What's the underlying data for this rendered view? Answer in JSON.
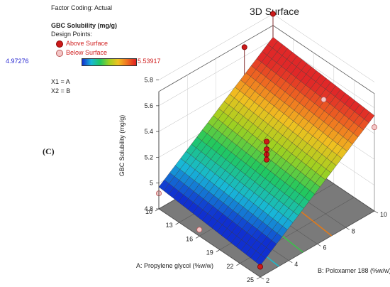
{
  "panel_label": "(C)",
  "info": {
    "factor_coding": "Factor Coding: Actual",
    "response_name": "GBC Solubility (mg/g)",
    "design_points_label": "Design Points:",
    "above_label": "Above Surface",
    "below_label": "Below Surface",
    "range_low": "4.97276",
    "range_high": "5.53917",
    "x1_def": "X1 = A",
    "x2_def": "X2 = B"
  },
  "colors": {
    "above_marker": "#cc1a1a",
    "below_marker": "#f3c7c7",
    "floor": "#7a7a7a",
    "info_blue": "#1f1fd0",
    "info_red": "#d01f1f"
  },
  "chart_data": {
    "type": "surface3d",
    "title": "3D Surface",
    "xlabel": "A: Propylene glycol (%w/w)",
    "ylabel": "B: Poloxamer 188 (%w/w)",
    "zlabel": "GBC Solubility (mg/g)",
    "x_ticks": [
      "10",
      "13",
      "16",
      "19",
      "22",
      "25"
    ],
    "y_ticks": [
      "2",
      "4",
      "6",
      "8",
      "10"
    ],
    "z_ticks": [
      "4.8",
      "5",
      "5.2",
      "5.4",
      "5.6",
      "5.8"
    ],
    "xlim": [
      10,
      25
    ],
    "ylim": [
      2,
      10
    ],
    "zlim": [
      4.8,
      5.8
    ],
    "surface": {
      "type": "plane",
      "corners": [
        {
          "a": 10,
          "b": 2,
          "z": 4.97
        },
        {
          "a": 25,
          "b": 2,
          "z": 4.89
        },
        {
          "a": 10,
          "b": 10,
          "z": 5.62
        },
        {
          "a": 25,
          "b": 10,
          "z": 5.54
        }
      ],
      "color_min": 4.97276,
      "color_max": 5.53917
    },
    "contours": [
      {
        "color": "#1fb8c7",
        "b_at_a10": 3.9,
        "b_at_a25": 3.3
      },
      {
        "color": "#3bc24a",
        "b_at_a10": 5.6,
        "b_at_a25": 5.0
      },
      {
        "color": "#e07a1a",
        "b_at_a10": 7.6,
        "b_at_a25": 7.0
      }
    ],
    "design_points": [
      {
        "a": 25,
        "b": 2,
        "z": 4.88,
        "type": "above"
      },
      {
        "a": 10,
        "b": 10,
        "z": 5.8,
        "type": "above"
      },
      {
        "a": 17.5,
        "b": 6,
        "z": 5.33,
        "type": "above"
      },
      {
        "a": 17.5,
        "b": 6,
        "z": 5.27,
        "type": "above"
      },
      {
        "a": 17.5,
        "b": 6,
        "z": 5.23,
        "type": "above"
      },
      {
        "a": 17.5,
        "b": 6,
        "z": 5.19,
        "type": "above"
      },
      {
        "a": 10,
        "b": 8,
        "z": 5.67,
        "type": "above"
      },
      {
        "a": 10,
        "b": 2,
        "z": 4.92,
        "type": "below"
      },
      {
        "a": 25,
        "b": 10,
        "z": 5.45,
        "type": "below"
      },
      {
        "a": 16,
        "b": 2,
        "z": 4.85,
        "type": "below"
      },
      {
        "a": 17.5,
        "b": 10,
        "z": 5.4,
        "type": "below"
      }
    ]
  }
}
